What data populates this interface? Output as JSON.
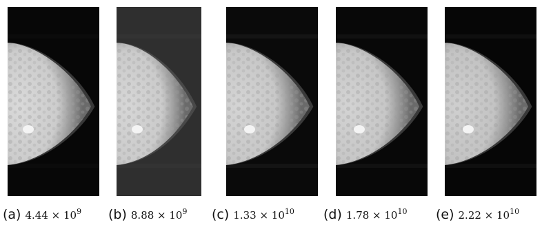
{
  "figure": {
    "panels": [
      {
        "letter": "(a)",
        "value": "4.44 × 10",
        "exp": "9",
        "bg": "#070707",
        "band": "#0b0b0b",
        "tissue": "#d9d9d9"
      },
      {
        "letter": "(b)",
        "value": "8.88 × 10",
        "exp": "9",
        "bg": "#2f2f2f",
        "band": "#333333",
        "tissue": "#d6d6d6"
      },
      {
        "letter": "(c)",
        "value": "1.33 × 10",
        "exp": "10",
        "bg": "#0a0a0a",
        "band": "#141414",
        "tissue": "#d4d4d4"
      },
      {
        "letter": "(d)",
        "value": "1.78 × 10",
        "exp": "10",
        "bg": "#080808",
        "band": "#111111",
        "tissue": "#d3d3d3"
      },
      {
        "letter": "(e)",
        "value": "2.22 × 10",
        "exp": "10",
        "bg": "#060606",
        "band": "#0f0f0f",
        "tissue": "#cfcfcf"
      }
    ]
  }
}
